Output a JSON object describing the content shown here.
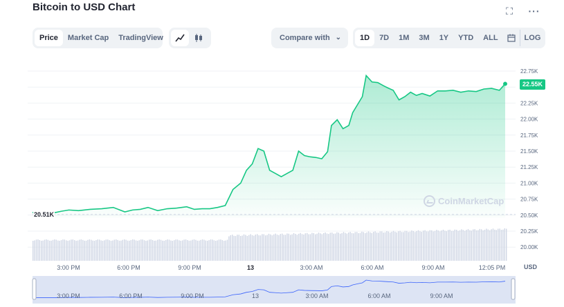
{
  "header": {
    "title": "Bitcoin to USD Chart"
  },
  "icons": {
    "fullscreen": "fullscreen-icon",
    "more": "more-icon",
    "line": "line-chart-icon",
    "candle": "candlestick-icon",
    "calendar": "calendar-icon"
  },
  "tabs": [
    {
      "label": "Price",
      "active": true
    },
    {
      "label": "Market Cap",
      "active": false
    },
    {
      "label": "TradingView",
      "active": false
    }
  ],
  "compare": {
    "label": "Compare with"
  },
  "timeframes": [
    {
      "label": "1D",
      "active": true
    },
    {
      "label": "7D",
      "active": false
    },
    {
      "label": "1M",
      "active": false
    },
    {
      "label": "3M",
      "active": false
    },
    {
      "label": "1Y",
      "active": false
    },
    {
      "label": "YTD",
      "active": false
    },
    {
      "label": "ALL",
      "active": false
    }
  ],
  "log_label": "LOG",
  "currency_label": "USD",
  "watermark": "CoinMarketCap",
  "price_badge": "22.55K",
  "open_price_label": "20.51K",
  "colors": {
    "accent": "#16c784",
    "grid": "#eff2f5",
    "volume": "#cfd6e4",
    "navigator": "#dde4f4"
  },
  "chart_data": {
    "type": "area",
    "y_ticks": [
      "22.75K",
      "22.50K",
      "22.25K",
      "22.00K",
      "21.75K",
      "21.50K",
      "21.25K",
      "21.00K",
      "20.75K",
      "20.50K",
      "20.25K",
      "20.00K"
    ],
    "x_ticks": [
      "3:00 PM",
      "6:00 PM",
      "9:00 PM",
      "13",
      "3:00 AM",
      "6:00 AM",
      "9:00 AM",
      "12:05 PM"
    ],
    "navigator_ticks": [
      "3:00 PM",
      "6:00 PM",
      "9:00 PM",
      "13",
      "3:00 AM",
      "6:00 AM",
      "9:00 AM"
    ],
    "ylim": [
      20000,
      22850
    ],
    "hour_range": [
      13,
      36.3
    ],
    "reference_price": 20510,
    "last_price": 22550,
    "series": [
      {
        "x": [
          13.0,
          13.3,
          13.7,
          14.2,
          14.8,
          15.4,
          16.0,
          16.6,
          17.0,
          17.4,
          17.8,
          18.3,
          18.8,
          19.3,
          19.8,
          20.2,
          20.6,
          21.0,
          21.4,
          21.8,
          22.2,
          22.6,
          22.9,
          23.2,
          23.5,
          23.8,
          24.1,
          24.4,
          24.7,
          25.0,
          25.3,
          25.6,
          25.9,
          26.2,
          26.5,
          26.8,
          27.1,
          27.3,
          27.6,
          27.9,
          28.2,
          28.4,
          28.7,
          28.9,
          29.1,
          29.4,
          29.7,
          30.0,
          30.2,
          30.5,
          30.8,
          31.1,
          31.4,
          31.7,
          32.0,
          32.4,
          32.8,
          33.2,
          33.6,
          34.0,
          34.4,
          34.8,
          35.2,
          35.6,
          36.0,
          36.3
        ],
        "values": [
          20540,
          20560,
          20580,
          20570,
          20590,
          20600,
          20620,
          20550,
          20580,
          20590,
          20620,
          20570,
          20600,
          20610,
          20630,
          20590,
          20600,
          20600,
          20620,
          20650,
          20900,
          21000,
          21200,
          21300,
          21540,
          21500,
          21200,
          21150,
          21100,
          21150,
          21200,
          21500,
          21430,
          21410,
          21400,
          21380,
          21490,
          21900,
          21990,
          21850,
          21900,
          22100,
          22250,
          22350,
          22680,
          22580,
          22570,
          22520,
          22490,
          22450,
          22300,
          22350,
          22420,
          22370,
          22400,
          22360,
          22440,
          22440,
          22450,
          22420,
          22440,
          22430,
          22470,
          22480,
          22450,
          22550
        ]
      }
    ]
  }
}
